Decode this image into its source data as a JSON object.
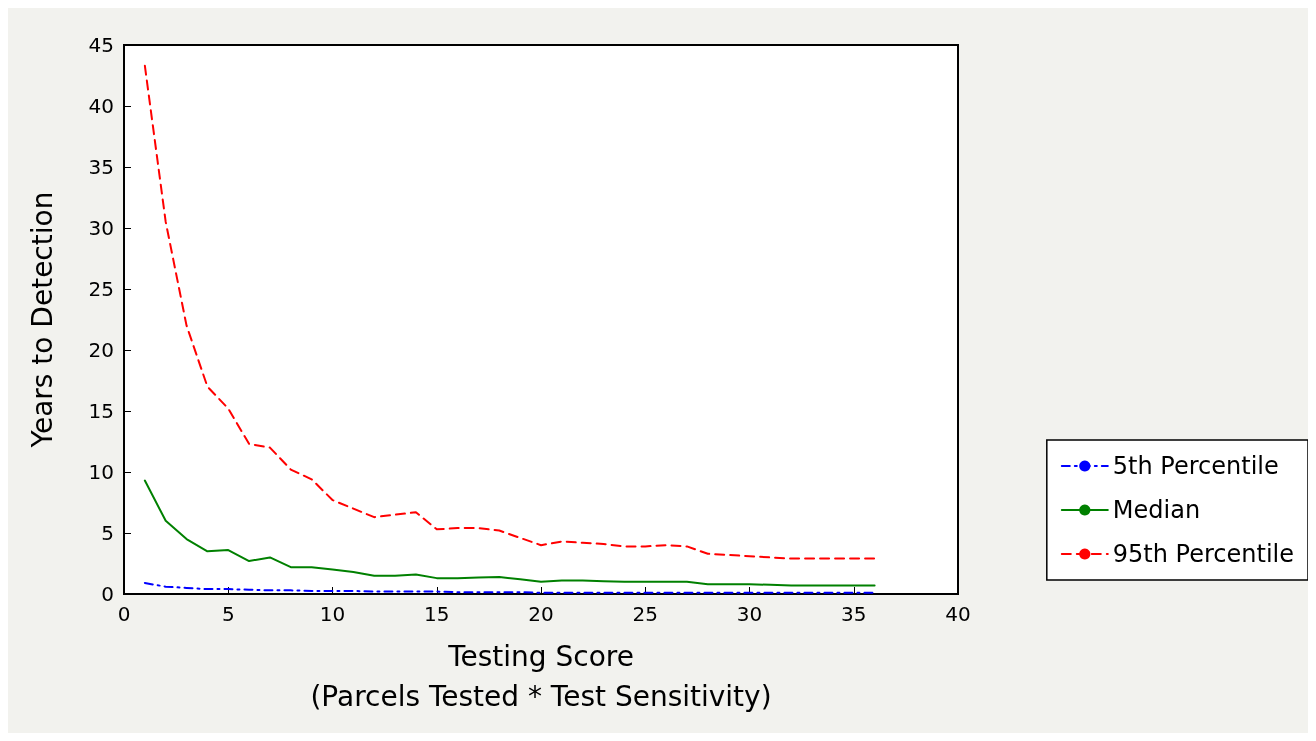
{
  "chart_data": {
    "type": "line",
    "xlabel": "Testing Score\n(Parcels Tested * Test Sensitivity)",
    "ylabel": "Years to Detection",
    "x": [
      1,
      2,
      3,
      4,
      5,
      6,
      7,
      8,
      9,
      10,
      11,
      12,
      13,
      14,
      15,
      16,
      17,
      18,
      19,
      20,
      21,
      22,
      23,
      24,
      25,
      26,
      27,
      28,
      29,
      30,
      31,
      32,
      33,
      34,
      35,
      36
    ],
    "series": [
      {
        "name": "5th Percentile",
        "color": "#0000ff",
        "line_style": "dashdot",
        "values": [
          0.9,
          0.6,
          0.5,
          0.4,
          0.4,
          0.35,
          0.3,
          0.3,
          0.25,
          0.25,
          0.25,
          0.2,
          0.2,
          0.2,
          0.2,
          0.15,
          0.15,
          0.15,
          0.15,
          0.1,
          0.1,
          0.1,
          0.1,
          0.1,
          0.1,
          0.1,
          0.1,
          0.1,
          0.1,
          0.1,
          0.1,
          0.1,
          0.1,
          0.1,
          0.1,
          0.1
        ]
      },
      {
        "name": "Median",
        "color": "#008000",
        "line_style": "solid",
        "values": [
          9.3,
          6,
          4.5,
          3.5,
          3.6,
          2.7,
          3,
          2.2,
          2.2,
          2,
          1.8,
          1.5,
          1.5,
          1.6,
          1.3,
          1.3,
          1.35,
          1.4,
          1.2,
          1,
          1.1,
          1.1,
          1.05,
          1,
          1,
          1,
          1,
          0.8,
          0.8,
          0.8,
          0.75,
          0.7,
          0.7,
          0.7,
          0.7,
          0.7
        ]
      },
      {
        "name": "95th Percentile",
        "color": "#ff0000",
        "line_style": "dashed",
        "values": [
          43.3,
          30.5,
          22,
          17,
          15.2,
          12.3,
          12,
          10.2,
          9.4,
          7.7,
          7,
          6.3,
          6.5,
          6.7,
          5.3,
          5.4,
          5.4,
          5.2,
          4.6,
          4,
          4.3,
          4.2,
          4.1,
          3.9,
          3.9,
          4,
          3.9,
          3.3,
          3.2,
          3.1,
          3,
          2.9,
          2.9,
          2.9,
          2.9,
          2.9
        ]
      }
    ],
    "xlim": [
      0,
      40
    ],
    "xticks": [
      0,
      5,
      10,
      15,
      20,
      25,
      30,
      35,
      40
    ],
    "ylim": [
      0,
      45
    ],
    "yticks": [
      0,
      5,
      10,
      15,
      20,
      25,
      30,
      35,
      40,
      45
    ],
    "grid": false,
    "legend": "right",
    "marker": "none"
  }
}
